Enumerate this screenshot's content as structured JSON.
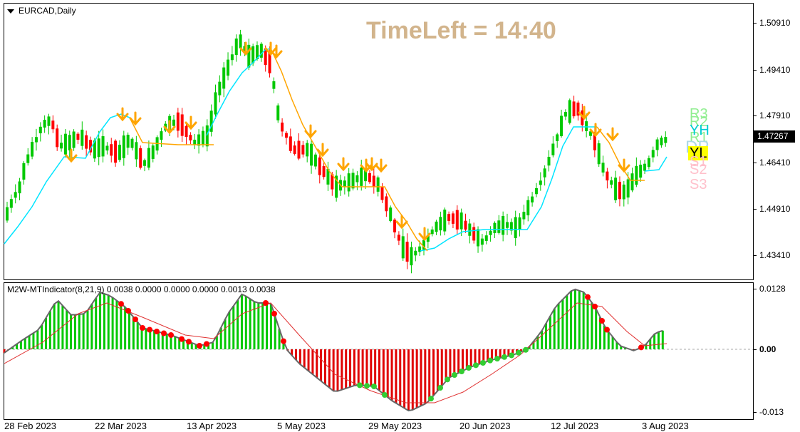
{
  "symbol": "EURCAD,Daily",
  "timeleft": "TimeLeft = 14:40",
  "current_price": "1.47267",
  "price_axis": [
    "1.50910",
    "1.49410",
    "1.47910",
    "1.46410",
    "1.44910",
    "1.43410"
  ],
  "indicator_title": "M2W-MTIndicator(8,21,9) 0.0038 0.0000 0.0000 0.0000 0.0013 0.0038",
  "indicator_axis": [
    "0.0128",
    "0.00",
    "-0.013"
  ],
  "date_axis": [
    "28 Feb 2023",
    "22 Mar 2023",
    "13 Apr 2023",
    "5 May 2023",
    "29 May 2023",
    "20 Jun 2023",
    "12 Jul 2023",
    "3 Aug 2023"
  ],
  "levels": {
    "r3": "R3",
    "r2": "R2",
    "yh": "YH",
    "r1": "R1",
    "dp": "DP",
    "yl": "YL",
    "s1": "S1",
    "s2": "S2",
    "s3": "S3"
  },
  "colors": {
    "bull_candle": "#00c800",
    "bear_candle": "#ff0000",
    "signal_line_up": "#00e5ff",
    "signal_line_down": "#ffa500",
    "arrow": "#ffa500",
    "timeleft": "#d2b48c",
    "hist_positive": "#00c800",
    "hist_negative": "#e00000",
    "dot_red": "#ff0000",
    "dot_green": "#32cd32"
  },
  "icons": {
    "menu": "triangle-down-icon",
    "signal": "down-arrow-icon"
  }
}
